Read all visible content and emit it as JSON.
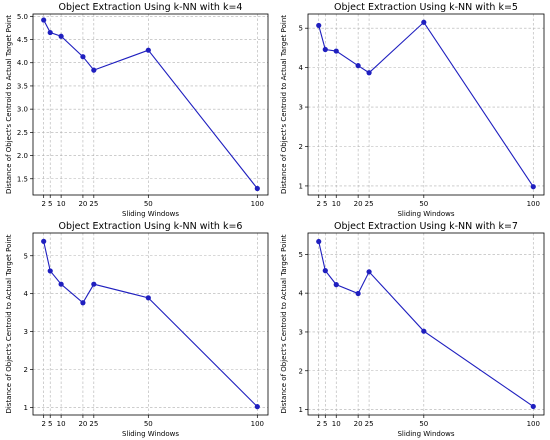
{
  "chart_data": [
    {
      "type": "line",
      "title": "Object Extraction Using k-NN with k=4",
      "xlabel": "Sliding Windows",
      "ylabel": "Distance of Object's Centroid to Actual Target Point",
      "x": [
        2,
        5,
        10,
        20,
        25,
        50,
        100
      ],
      "x_ticks": [
        "2",
        "5",
        "10",
        "20",
        "25",
        "50",
        "100"
      ],
      "y_ticks": [
        "1.5",
        "2.0",
        "2.5",
        "3.0",
        "3.5",
        "4.0",
        "4.5",
        "5.0"
      ],
      "y": [
        4.92,
        4.65,
        4.57,
        4.13,
        3.84,
        4.27,
        1.29
      ],
      "ylim": [
        1.15,
        5.05
      ],
      "grid": true,
      "color": "#1f1fbf"
    },
    {
      "type": "line",
      "title": "Object Extraction Using k-NN with k=5",
      "xlabel": "Sliding Windows",
      "ylabel": "Distance of Object's Centroid to Actual Target Point",
      "x": [
        2,
        5,
        10,
        20,
        25,
        50,
        100
      ],
      "x_ticks": [
        "2",
        "5",
        "10",
        "20",
        "25",
        "50",
        "100"
      ],
      "y_ticks": [
        "1",
        "2",
        "3",
        "4",
        "5"
      ],
      "y": [
        5.07,
        4.46,
        4.42,
        4.05,
        3.87,
        5.15,
        0.98
      ],
      "ylim": [
        0.77,
        5.36
      ],
      "grid": true,
      "color": "#1f1fbf"
    },
    {
      "type": "line",
      "title": "Object Extraction Using k-NN with k=6",
      "xlabel": "Sliding Windows",
      "ylabel": "Distance of Object's Centroid to Actual Target Point",
      "x": [
        2,
        5,
        10,
        20,
        25,
        50,
        100
      ],
      "x_ticks": [
        "2",
        "5",
        "10",
        "20",
        "25",
        "50",
        "100"
      ],
      "y_ticks": [
        "1",
        "2",
        "3",
        "4",
        "5"
      ],
      "y": [
        5.38,
        4.6,
        4.25,
        3.76,
        4.25,
        3.89,
        1.02
      ],
      "ylim": [
        0.8,
        5.6
      ],
      "grid": true,
      "color": "#1f1fbf"
    },
    {
      "type": "line",
      "title": "Object Extraction Using k-NN with k=7",
      "xlabel": "Sliding Windows",
      "ylabel": "Distance of Object's Centroid to Actual Target Point",
      "x": [
        2,
        5,
        10,
        20,
        25,
        50,
        100
      ],
      "x_ticks": [
        "2",
        "5",
        "10",
        "20",
        "25",
        "50",
        "100"
      ],
      "y_ticks": [
        "1",
        "2",
        "3",
        "4",
        "5"
      ],
      "y": [
        5.33,
        4.58,
        4.22,
        3.99,
        4.55,
        3.02,
        1.08
      ],
      "ylim": [
        0.86,
        5.55
      ],
      "grid": true,
      "color": "#1f1fbf"
    }
  ]
}
